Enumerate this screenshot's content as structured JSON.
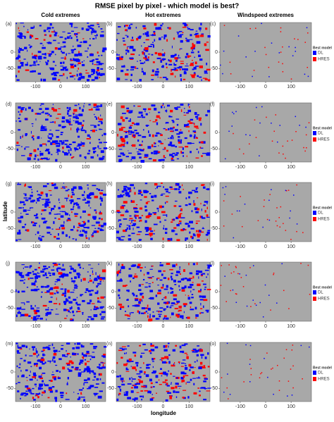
{
  "title": "RMSE pixel by pixel - which model is best?",
  "columns": [
    "Cold extremes",
    "Hot extremes",
    "Windspeed extremes"
  ],
  "panels": [
    "(a)",
    "(b)",
    "(c)",
    "(d)",
    "(e)",
    "(f)",
    "(g)",
    "(h)",
    "(i)",
    "(j)",
    "(k)",
    "(l)",
    "(m)",
    "(n)",
    "(o)"
  ],
  "xlabel": "longitude",
  "ylabel": "latitude",
  "xlim": [
    -180,
    180
  ],
  "ylim": [
    -90,
    90
  ],
  "xticks": [
    -100,
    0,
    100
  ],
  "yticks": [
    0,
    -50
  ],
  "legend": {
    "title": "Best model",
    "items": [
      {
        "label": "DL",
        "color": "#0000ff"
      },
      {
        "label": "HRES",
        "color": "#ff0000"
      }
    ]
  }
}
